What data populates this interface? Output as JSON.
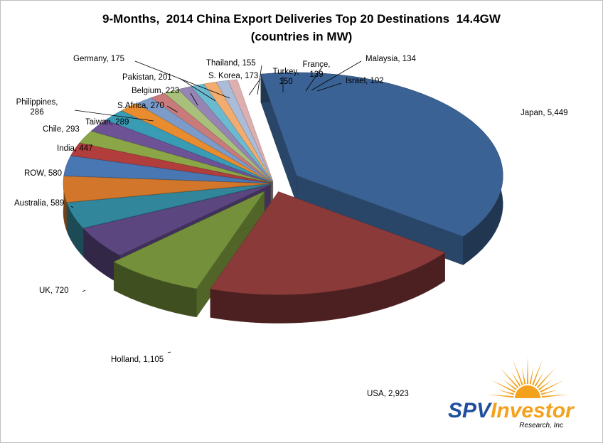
{
  "chart_data": {
    "type": "pie",
    "title_line1": "9-Months,  2014 China Export Deliveries Top 20 Destinations  14.4GW",
    "title_line2": "(countries in MW)",
    "unit": "MW",
    "slices": [
      {
        "name": "Japan",
        "value": 5449,
        "label": "Japan, 5,449",
        "color": "#3a6294"
      },
      {
        "name": "USA",
        "value": 2923,
        "label": "USA,  2,923",
        "color": "#8b3a3a"
      },
      {
        "name": "Holland",
        "value": 1105,
        "label": "Holland, 1,105",
        "color": "#74903a"
      },
      {
        "name": "UK",
        "value": 720,
        "label": "UK,  720",
        "color": "#5b4680"
      },
      {
        "name": "Australia",
        "value": 589,
        "label": "Australia, 589",
        "color": "#32869b"
      },
      {
        "name": "ROW",
        "value": 580,
        "label": "ROW, 580",
        "color": "#d1762a"
      },
      {
        "name": "India",
        "value": 447,
        "label": "India, 447",
        "color": "#4877b3"
      },
      {
        "name": "Chile",
        "value": 293,
        "label": "Chile, 293",
        "color": "#b13d3d"
      },
      {
        "name": "Taiwan",
        "value": 289,
        "label": "Taiwan, 289",
        "color": "#8aa647"
      },
      {
        "name": "Philippines",
        "value": 286,
        "label": "Philippines,\n286",
        "color": "#6d5396"
      },
      {
        "name": "S.Africa",
        "value": 270,
        "label": "S.Africa, 270",
        "color": "#3a9bb5"
      },
      {
        "name": "Belgium",
        "value": 223,
        "label": "Belgium, 223",
        "color": "#e98c2f"
      },
      {
        "name": "Pakistan",
        "value": 201,
        "label": "Pakistan, 201",
        "color": "#7c9bc9"
      },
      {
        "name": "Germany",
        "value": 175,
        "label": "Germany,  175",
        "color": "#c97b7b"
      },
      {
        "name": "S. Korea",
        "value": 173,
        "label": "S. Korea, 173",
        "color": "#a8c07b"
      },
      {
        "name": "Thailand",
        "value": 155,
        "label": "Thailand, 155",
        "color": "#9684b4"
      },
      {
        "name": "Turkey",
        "value": 150,
        "label": "Turkey,\n150",
        "color": "#6bbad0"
      },
      {
        "name": "France",
        "value": 139,
        "label": "France,\n139",
        "color": "#f2ac6f"
      },
      {
        "name": "Malaysia",
        "value": 134,
        "label": "Malaysia, 134",
        "color": "#aabcd8"
      },
      {
        "name": "Israel",
        "value": 102,
        "label": "Israel, 102",
        "color": "#deafaf"
      }
    ]
  },
  "logo": {
    "brand_spv": "SPV",
    "brand_investor": "Investor",
    "subtitle": "Research, Inc",
    "sun_color": "#f4a11c",
    "brand_color": "#1f4f9c"
  }
}
